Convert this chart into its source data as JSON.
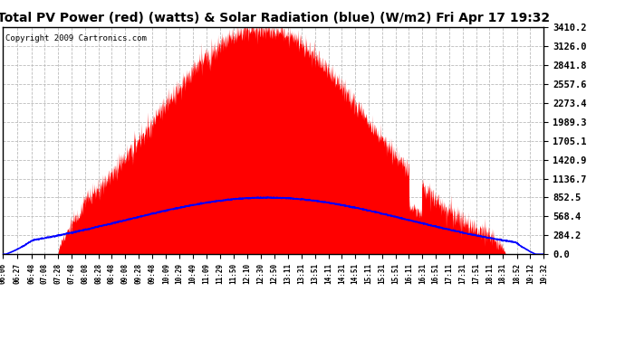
{
  "title": "Total PV Power (red) (watts) & Solar Radiation (blue) (W/m2) Fri Apr 17 19:32",
  "copyright_text": "Copyright 2009 Cartronics.com",
  "y_max": 3410.2,
  "y_min": 0.0,
  "y_ticks": [
    0.0,
    284.2,
    568.4,
    852.5,
    1136.7,
    1420.9,
    1705.1,
    1989.3,
    2273.4,
    2557.6,
    2841.8,
    3126.0,
    3410.2
  ],
  "x_tick_labels": [
    "06:06",
    "06:27",
    "06:48",
    "07:08",
    "07:28",
    "07:48",
    "08:08",
    "08:28",
    "08:48",
    "09:08",
    "09:28",
    "09:48",
    "10:09",
    "10:29",
    "10:49",
    "11:09",
    "11:29",
    "11:50",
    "12:10",
    "12:30",
    "12:50",
    "13:11",
    "13:31",
    "13:51",
    "14:11",
    "14:31",
    "14:51",
    "15:11",
    "15:31",
    "15:51",
    "16:11",
    "16:31",
    "16:51",
    "17:11",
    "17:31",
    "17:51",
    "18:11",
    "18:31",
    "18:52",
    "19:12",
    "19:32"
  ],
  "bg_color": "#ffffff",
  "plot_bg_color": "#ffffff",
  "grid_color": "#bbbbbb",
  "red_fill_color": "#ff0000",
  "blue_line_color": "#0000ff",
  "title_fontsize": 10,
  "copyright_fontsize": 6.5,
  "solar_noon": 750,
  "pv_sigma": 155,
  "pv_peak": 3410,
  "sol_sigma": 210,
  "sol_peak": 850,
  "sol_noon": 760
}
